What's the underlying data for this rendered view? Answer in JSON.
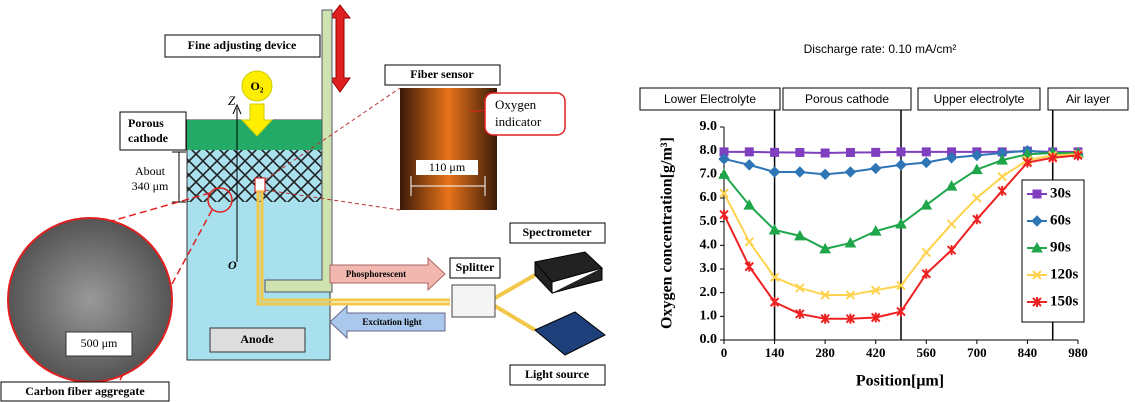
{
  "diagram": {
    "fine_adjusting_device": "Fine adjusting device",
    "oxygen": "O₂",
    "fiber_sensor": "Fiber sensor",
    "oxygen_indicator": [
      "Oxygen",
      "indicator"
    ],
    "photo_scale": "110 μm",
    "porous_cathode": [
      "Porous",
      "cathode"
    ],
    "z_axis": "Z",
    "origin": "O",
    "thickness": [
      "About",
      "340 μm"
    ],
    "spectrometer": "Spectrometer",
    "phosphorescent": "Phosphorescent",
    "splitter": "Splitter",
    "excitation_light": "Excitation light",
    "anode": "Anode",
    "sem_scale": "500 μm",
    "light_source": "Light source",
    "carbon_fiber": "Carbon fiber aggregate"
  },
  "chart_data": {
    "type": "line",
    "title": "Discharge rate: 0.10 mA/cm²",
    "x_label": "Position[μm]",
    "y_label": "Oxygen concentration[g/m³]",
    "regions": [
      "Lower Electrolyte",
      "Porous cathode",
      "Upper electrolyte",
      "Air layer"
    ],
    "boundaries": [
      140,
      490,
      910
    ],
    "x": [
      0,
      70,
      140,
      210,
      280,
      350,
      420,
      490,
      560,
      630,
      700,
      770,
      840,
      910,
      980
    ],
    "xlim": [
      0,
      980
    ],
    "xticks": [
      0,
      140,
      280,
      420,
      560,
      700,
      840,
      980
    ],
    "ylim": [
      0,
      9
    ],
    "yticks": [
      {
        "value": 0,
        "label": "0.0"
      },
      {
        "value": 1,
        "label": "1.0"
      },
      {
        "value": 2,
        "label": "2.0"
      },
      {
        "value": 3,
        "label": "3.0"
      },
      {
        "value": 4,
        "label": "4.0"
      },
      {
        "value": 5,
        "label": "5.0"
      },
      {
        "value": 6,
        "label": "6.0"
      },
      {
        "value": 7,
        "label": "7.0"
      },
      {
        "value": 8,
        "label": "8.0"
      },
      {
        "value": 9,
        "label": "9.0"
      }
    ],
    "series": [
      {
        "name": "30s",
        "color": "#7f3fbf",
        "marker": "square",
        "values": [
          7.95,
          7.95,
          7.93,
          7.92,
          7.9,
          7.92,
          7.93,
          7.95,
          7.95,
          7.95,
          7.95,
          7.95,
          7.98,
          7.95,
          7.95
        ]
      },
      {
        "name": "60s",
        "color": "#2e75b6",
        "marker": "diamond",
        "values": [
          7.65,
          7.4,
          7.1,
          7.1,
          7.0,
          7.1,
          7.25,
          7.4,
          7.5,
          7.7,
          7.8,
          7.9,
          8.0,
          7.9,
          7.85
        ]
      },
      {
        "name": "90s",
        "color": "#1fa64a",
        "marker": "triangle",
        "values": [
          7.0,
          5.7,
          4.65,
          4.4,
          3.85,
          4.1,
          4.6,
          4.9,
          5.7,
          6.5,
          7.2,
          7.6,
          7.85,
          7.9,
          7.9
        ]
      },
      {
        "name": "120s",
        "color": "#ffd34d",
        "marker": "x",
        "values": [
          6.2,
          4.15,
          2.65,
          2.2,
          1.9,
          1.9,
          2.1,
          2.3,
          3.7,
          4.9,
          6.0,
          6.9,
          7.6,
          7.8,
          7.85
        ]
      },
      {
        "name": "150s",
        "color": "#ee2222",
        "marker": "star",
        "values": [
          5.3,
          3.1,
          1.6,
          1.1,
          0.9,
          0.9,
          0.95,
          1.2,
          2.8,
          3.8,
          5.1,
          6.3,
          7.5,
          7.7,
          7.8
        ]
      }
    ]
  }
}
